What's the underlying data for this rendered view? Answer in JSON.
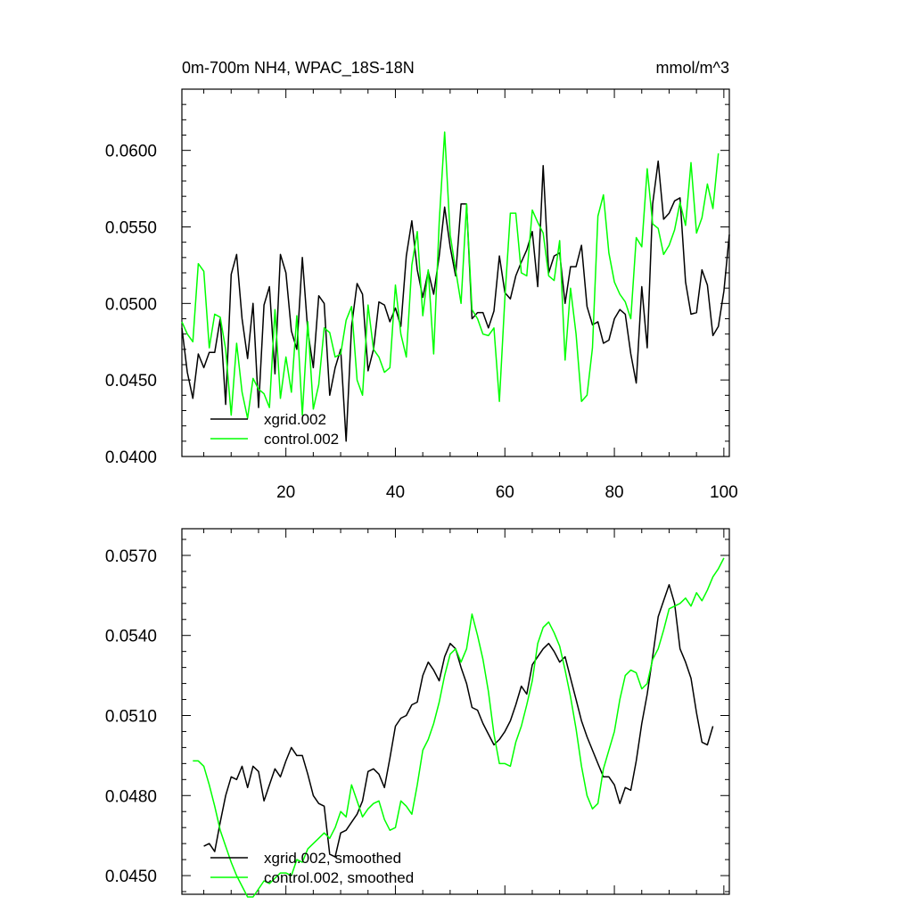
{
  "chart_data": [
    {
      "type": "line",
      "title": "0m-700m NH4, WPAC_18S-18N",
      "units": "mmol/m^3",
      "xlim": [
        1,
        101
      ],
      "ylim": [
        0.04,
        0.064
      ],
      "xticks": [
        20,
        40,
        60,
        80,
        100
      ],
      "yticks": [
        0.04,
        0.045,
        0.05,
        0.055,
        0.06
      ],
      "ytick_labels": [
        "0.0400",
        "0.0450",
        "0.0500",
        "0.0550",
        "0.0600"
      ],
      "legend_position": "bottom-left",
      "series": [
        {
          "name": "xgrid.002",
          "color": "#000000",
          "x_start": 1,
          "values": [
            0.0484,
            0.0455,
            0.0438,
            0.0467,
            0.0458,
            0.0468,
            0.0468,
            0.049,
            0.0434,
            0.0519,
            0.0532,
            0.049,
            0.0464,
            0.05,
            0.0432,
            0.0499,
            0.0511,
            0.0454,
            0.0532,
            0.052,
            0.0482,
            0.047,
            0.053,
            0.0482,
            0.0458,
            0.0505,
            0.05,
            0.044,
            0.0458,
            0.047,
            0.041,
            0.0485,
            0.0513,
            0.0506,
            0.0456,
            0.047,
            0.0501,
            0.0499,
            0.0488,
            0.0497,
            0.0485,
            0.0531,
            0.0554,
            0.0522,
            0.0504,
            0.0521,
            0.0506,
            0.0531,
            0.0563,
            0.0537,
            0.0518,
            0.0565,
            0.0565,
            0.049,
            0.0494,
            0.0494,
            0.0484,
            0.0495,
            0.0531,
            0.0507,
            0.0503,
            0.0518,
            0.0527,
            0.0535,
            0.0547,
            0.0511,
            0.059,
            0.052,
            0.0531,
            0.0533,
            0.05,
            0.0524,
            0.0524,
            0.0538,
            0.0498,
            0.0486,
            0.0488,
            0.0474,
            0.0476,
            0.049,
            0.0496,
            0.0493,
            0.0467,
            0.0448,
            0.0511,
            0.0471,
            0.0565,
            0.0593,
            0.0555,
            0.0559,
            0.0567,
            0.0569,
            0.0514,
            0.0493,
            0.0494,
            0.0522,
            0.0512,
            0.0479,
            0.0485,
            0.0508,
            0.0545
          ]
        },
        {
          "name": "control.002",
          "color": "#00ff00",
          "x_start": 1,
          "values": [
            0.0488,
            0.048,
            0.0475,
            0.0526,
            0.0521,
            0.0471,
            0.0493,
            0.0491,
            0.047,
            0.0427,
            0.0474,
            0.0442,
            0.0425,
            0.0451,
            0.0444,
            0.0441,
            0.0432,
            0.0496,
            0.0438,
            0.0465,
            0.0442,
            0.0492,
            0.0427,
            0.0488,
            0.0431,
            0.0447,
            0.0484,
            0.0481,
            0.0465,
            0.0467,
            0.0489,
            0.0498,
            0.045,
            0.044,
            0.0499,
            0.047,
            0.0465,
            0.0455,
            0.0458,
            0.0512,
            0.048,
            0.0465,
            0.0525,
            0.0547,
            0.0492,
            0.0522,
            0.0467,
            0.0553,
            0.0612,
            0.0545,
            0.0522,
            0.05,
            0.0565,
            0.0496,
            0.049,
            0.048,
            0.0479,
            0.0484,
            0.0436,
            0.0504,
            0.0559,
            0.0559,
            0.052,
            0.0518,
            0.0561,
            0.0553,
            0.0546,
            0.0518,
            0.0515,
            0.0541,
            0.0463,
            0.051,
            0.048,
            0.0436,
            0.044,
            0.0471,
            0.0557,
            0.0571,
            0.0533,
            0.0514,
            0.0506,
            0.0501,
            0.049,
            0.0543,
            0.0537,
            0.0588,
            0.0552,
            0.0549,
            0.0532,
            0.0538,
            0.0548,
            0.0566,
            0.0551,
            0.0592,
            0.0546,
            0.0556,
            0.0578,
            0.0562,
            0.0598
          ]
        }
      ]
    },
    {
      "type": "line",
      "title": "",
      "xlim": [
        1,
        101
      ],
      "ylim": [
        0.0443,
        0.058
      ],
      "xticks": [
        20,
        40,
        60,
        80,
        100
      ],
      "yticks": [
        0.045,
        0.048,
        0.051,
        0.054,
        0.057
      ],
      "ytick_labels": [
        "0.0450",
        "0.0480",
        "0.0510",
        "0.0540",
        "0.0570"
      ],
      "legend_position": "bottom-left",
      "series": [
        {
          "name": "xgrid.002, smoothed",
          "color": "#000000",
          "x_start": 5,
          "values": [
            0.0461,
            0.0462,
            0.0459,
            0.047,
            0.048,
            0.0487,
            0.0486,
            0.0491,
            0.0483,
            0.0491,
            0.0489,
            0.0478,
            0.0484,
            0.049,
            0.0487,
            0.0493,
            0.0498,
            0.0495,
            0.0495,
            0.0488,
            0.048,
            0.0477,
            0.0476,
            0.0458,
            0.0457,
            0.0466,
            0.0467,
            0.047,
            0.0473,
            0.0478,
            0.0489,
            0.049,
            0.0488,
            0.0483,
            0.0494,
            0.0506,
            0.0509,
            0.051,
            0.0514,
            0.0515,
            0.0525,
            0.053,
            0.0527,
            0.0523,
            0.0532,
            0.0537,
            0.0535,
            0.0528,
            0.0522,
            0.0513,
            0.0512,
            0.0507,
            0.0503,
            0.0499,
            0.0501,
            0.0504,
            0.0508,
            0.0514,
            0.0521,
            0.0518,
            0.0529,
            0.0532,
            0.0535,
            0.0537,
            0.0534,
            0.053,
            0.0532,
            0.0524,
            0.0516,
            0.0508,
            0.0502,
            0.0497,
            0.0492,
            0.0487,
            0.0487,
            0.0484,
            0.0477,
            0.0483,
            0.0482,
            0.0493,
            0.0507,
            0.0518,
            0.0532,
            0.0547,
            0.0553,
            0.0559,
            0.0552,
            0.0535,
            0.053,
            0.0524,
            0.0511,
            0.05,
            0.0499,
            0.0506
          ]
        },
        {
          "name": "control.002, smoothed",
          "color": "#00ff00",
          "x_start": 3,
          "values": [
            0.0493,
            0.0493,
            0.0491,
            0.0484,
            0.0476,
            0.0467,
            0.0461,
            0.0455,
            0.045,
            0.0446,
            0.0442,
            0.0442,
            0.0445,
            0.0448,
            0.0447,
            0.0449,
            0.0451,
            0.0451,
            0.045,
            0.0456,
            0.0455,
            0.046,
            0.0462,
            0.0464,
            0.0466,
            0.0464,
            0.0468,
            0.0474,
            0.0472,
            0.0484,
            0.0478,
            0.0472,
            0.0475,
            0.0477,
            0.0478,
            0.0471,
            0.0467,
            0.0468,
            0.0478,
            0.0476,
            0.0473,
            0.0484,
            0.0497,
            0.0501,
            0.0507,
            0.0515,
            0.0525,
            0.0533,
            0.0535,
            0.053,
            0.0535,
            0.0548,
            0.054,
            0.0531,
            0.0519,
            0.0503,
            0.0492,
            0.0492,
            0.0491,
            0.05,
            0.0506,
            0.0514,
            0.0523,
            0.0537,
            0.0543,
            0.0545,
            0.0541,
            0.0536,
            0.0527,
            0.0517,
            0.0505,
            0.0491,
            0.048,
            0.0475,
            0.0477,
            0.049,
            0.0497,
            0.0504,
            0.0516,
            0.0525,
            0.0527,
            0.0526,
            0.052,
            0.0522,
            0.0531,
            0.0535,
            0.0542,
            0.055,
            0.0551,
            0.0552,
            0.0554,
            0.0551,
            0.0556,
            0.0553,
            0.0557,
            0.0562,
            0.0565,
            0.0569
          ]
        }
      ]
    }
  ]
}
